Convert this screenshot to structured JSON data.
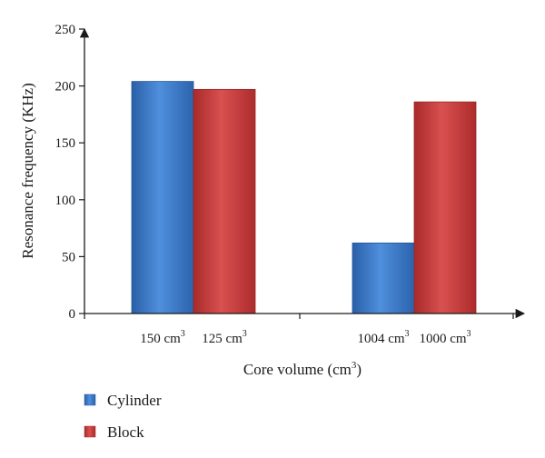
{
  "chart_data": {
    "type": "bar",
    "title": "",
    "ylabel": "Resonance frequency (KHz)",
    "xlabel": "Core volume (cm",
    "xlabel_sup": "3",
    "xlabel_close": ")",
    "ylim": [
      0,
      250
    ],
    "yticks": [
      "0",
      "50",
      "100",
      "150",
      "200",
      "250"
    ],
    "groups": [
      {
        "bars": [
          {
            "series": "Cylinder",
            "label": "150 cm",
            "label_sup": "3",
            "value": 204
          },
          {
            "series": "Block",
            "label": "125 cm",
            "label_sup": "3",
            "value": 197
          }
        ]
      },
      {
        "bars": [
          {
            "series": "Cylinder",
            "label": "1004 cm",
            "label_sup": "3",
            "value": 62
          },
          {
            "series": "Block",
            "label": "1000 cm",
            "label_sup": "3",
            "value": 186
          }
        ]
      }
    ],
    "series": [
      {
        "name": "Cylinder",
        "color": "#3a78c9"
      },
      {
        "name": "Block",
        "color": "#c23a3a"
      }
    ],
    "legend_position": "bottom-left",
    "grid": false
  }
}
